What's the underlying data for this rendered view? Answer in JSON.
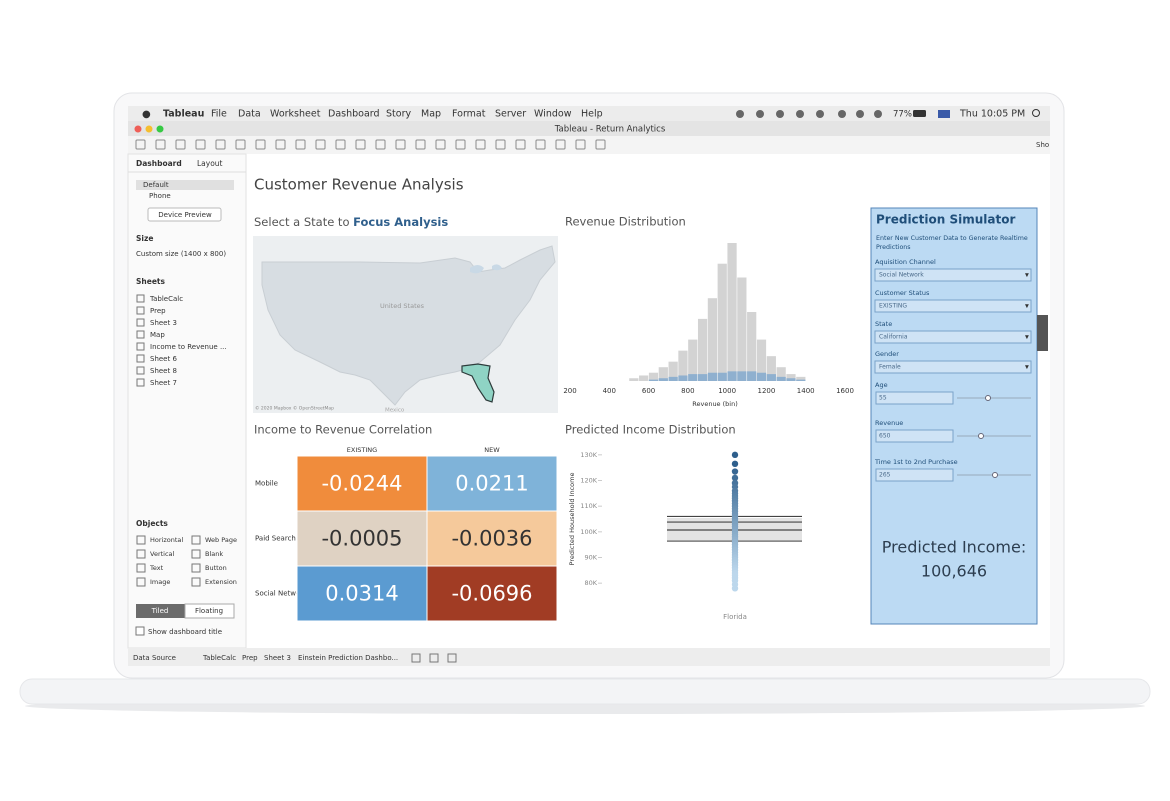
{
  "menu_bar": {
    "app": "Tableau",
    "items": [
      "File",
      "Data",
      "Worksheet",
      "Dashboard",
      "Story",
      "Map",
      "Format",
      "Server",
      "Window",
      "Help"
    ],
    "battery": "77%",
    "clock": "Thu 10:05 PM"
  },
  "window": {
    "title": "Tableau - Return Analytics"
  },
  "toolbar": {
    "show": "Sho"
  },
  "sidebar": {
    "tabs": [
      "Dashboard",
      "Layout"
    ],
    "devices": [
      "Default",
      "Phone"
    ],
    "device_preview": "Device Preview",
    "size_heading": "Size",
    "size": "Custom size (1400 x 800)",
    "sheets_heading": "Sheets",
    "sheets": [
      "TableCalc",
      "Prep",
      "Sheet 3",
      "Map",
      "Income to Revenue ...",
      "Sheet 6",
      "Sheet 8",
      "Sheet 7"
    ],
    "objects_heading": "Objects",
    "objects": [
      "Horizontal",
      "Web Page",
      "Vertical",
      "Blank",
      "Text",
      "Button",
      "Image",
      "Extension"
    ],
    "layout_modes": [
      "Tiled",
      "Floating"
    ],
    "show_title": "Show dashboard title"
  },
  "dashboard": {
    "title": "Customer Revenue Analysis",
    "map": {
      "title_prefix": "Select a State to ",
      "title_emphasis": "Focus Analysis",
      "country_label": "United States",
      "attribution": "© 2020 Mapbox © OpenStreetMap",
      "neighbor_label": "Mexico"
    }
  },
  "simulator": {
    "title": "Prediction Simulator",
    "subtitle": [
      "Enter New Customer Data to Generate Realtime",
      "Predictions"
    ],
    "fields": [
      {
        "label": "Aquisition Channel",
        "value": "Social Network"
      },
      {
        "label": "Customer Status",
        "value": "EXISTING"
      },
      {
        "label": "State",
        "value": "California"
      },
      {
        "label": "Gender",
        "value": "Female"
      }
    ],
    "sliders": [
      {
        "label": "Age",
        "value": 55
      },
      {
        "label": "Revenue",
        "value": 650
      },
      {
        "label": "Time 1st to 2nd Purchase",
        "value": 265
      }
    ],
    "result_label": "Predicted Income:",
    "result": "100,646"
  },
  "tabs": [
    "Data Source",
    "TableCalc",
    "Prep",
    "Sheet 3",
    "Einstein Prediction Dashbo..."
  ],
  "chart_data": [
    {
      "type": "histogram",
      "title": "Revenue Distribution",
      "x_label": "Revenue (bin)",
      "bins": [
        500,
        550,
        600,
        650,
        700,
        750,
        800,
        850,
        900,
        950,
        1000,
        1050,
        1100,
        1150,
        1200,
        1250,
        1300,
        1350,
        1400
      ],
      "series": [
        {
          "color": "#d3d3d3",
          "values": [
            2,
            4,
            6,
            10,
            14,
            22,
            30,
            45,
            60,
            85,
            100,
            75,
            50,
            30,
            18,
            10,
            5,
            3
          ]
        },
        {
          "color": "#8fb0cf",
          "values": [
            0,
            0,
            1,
            2,
            3,
            4,
            5,
            5,
            6,
            6,
            7,
            7,
            7,
            6,
            5,
            3,
            2,
            1
          ]
        }
      ],
      "xlim": [
        200,
        1600
      ],
      "xticks": [
        200,
        400,
        600,
        800,
        1000,
        1200,
        1400,
        1600
      ],
      "ylim": [
        0,
        100
      ]
    },
    {
      "type": "heatmap",
      "title": "Income to Revenue Correlation",
      "columns": [
        "EXISTING",
        "NEW"
      ],
      "rows": [
        "Mobile",
        "Paid Search",
        "Social Network"
      ],
      "values": [
        [
          -0.0244,
          0.0211
        ],
        [
          -0.0005,
          -0.0036
        ],
        [
          0.0314,
          -0.0696
        ]
      ],
      "colors": [
        [
          "#f08c3c",
          "#7fb3d9"
        ],
        [
          "#dfd2c3",
          "#f5c99b"
        ],
        [
          "#5b9bd1",
          "#a13c24"
        ]
      ]
    },
    {
      "type": "strip",
      "title": "Predicted Income Distribution",
      "y_label": "Predicted Household Income",
      "groups": [
        {
          "label": "Florida",
          "values": [
            130000,
            126500,
            123500,
            121000,
            119000,
            117500,
            116000,
            115000,
            114000,
            113000,
            112000,
            111000,
            110000,
            109000,
            108000,
            107000,
            106000,
            105000,
            104000,
            103000,
            102000,
            101000,
            100000,
            99000,
            98000,
            97000,
            96000,
            95000,
            94000,
            93000,
            92000,
            91000,
            90000,
            89000,
            88000,
            87000,
            86000,
            85000,
            84000,
            83000,
            82000,
            81000,
            79500,
            78000
          ]
        }
      ],
      "color_high": "#2e5f8c",
      "color_low": "#bcd7ec",
      "reference_lines": [
        106000,
        103800,
        100700,
        96400
      ],
      "ylim": [
        75000,
        135000
      ],
      "yticks": [
        {
          "value": 80000,
          "label": "80K"
        },
        {
          "value": 90000,
          "label": "90K"
        },
        {
          "value": 100000,
          "label": "100K"
        },
        {
          "value": 110000,
          "label": "110K"
        },
        {
          "value": 120000,
          "label": "120K"
        },
        {
          "value": 130000,
          "label": "130K"
        }
      ]
    }
  ]
}
